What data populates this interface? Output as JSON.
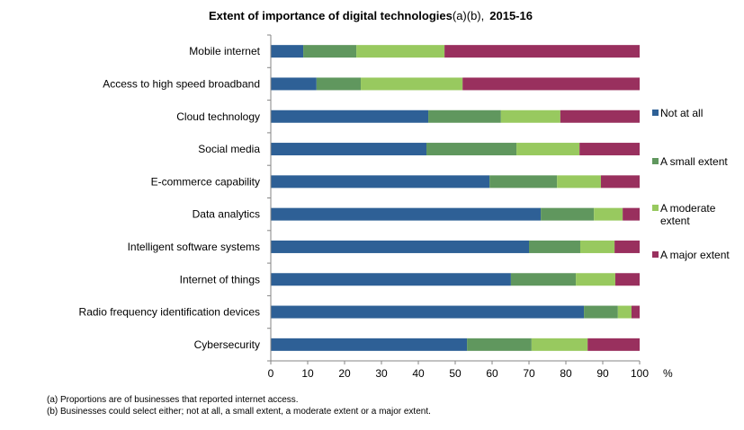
{
  "chart_data": {
    "type": "bar",
    "orientation": "horizontal",
    "stacked": true,
    "title": "Extent of importance of digital technologies",
    "title_suffix": "(a)(b),",
    "title_period": "2015-16",
    "xlabel": "%",
    "ylabel": "",
    "xlim": [
      0,
      100
    ],
    "x_ticks": [
      0,
      10,
      20,
      30,
      40,
      50,
      60,
      70,
      80,
      90,
      100
    ],
    "grid": false,
    "legend_position": "right",
    "categories": [
      "Mobile internet",
      "Access to high speed broadband",
      "Cloud technology",
      "Social media",
      "E-commerce capability",
      "Data analytics",
      "Intelligent software systems",
      "Internet of things",
      "Radio frequency identification devices",
      "Cybersecurity"
    ],
    "series": [
      {
        "name": "Not at all",
        "color": "#2E6096",
        "values": [
          8.8,
          12.4,
          42.7,
          42.2,
          59.3,
          73.2,
          70.0,
          65.1,
          84.9,
          53.2
        ]
      },
      {
        "name": "A small extent",
        "color": "#60975E",
        "values": [
          14.4,
          12.0,
          19.7,
          24.4,
          18.3,
          14.4,
          13.9,
          17.6,
          9.2,
          17.5
        ]
      },
      {
        "name": "A moderate extent",
        "color": "#98C95F",
        "values": [
          23.9,
          27.6,
          16.1,
          17.1,
          11.9,
          7.8,
          9.3,
          10.7,
          3.7,
          15.2
        ]
      },
      {
        "name": "A major extent",
        "color": "#99305E",
        "values": [
          52.9,
          48.0,
          21.5,
          16.3,
          10.5,
          4.6,
          6.8,
          6.6,
          2.2,
          14.1
        ]
      }
    ],
    "legend_labels_display": [
      [
        "Not at all"
      ],
      [
        "A small extent"
      ],
      [
        "A moderate",
        "extent"
      ],
      [
        "A major extent"
      ]
    ]
  },
  "footnotes": [
    "(a) Proportions are of businesses that reported internet access.",
    "(b) Businesses could select either; not at all,  a small extent, a moderate extent or a major extent."
  ]
}
